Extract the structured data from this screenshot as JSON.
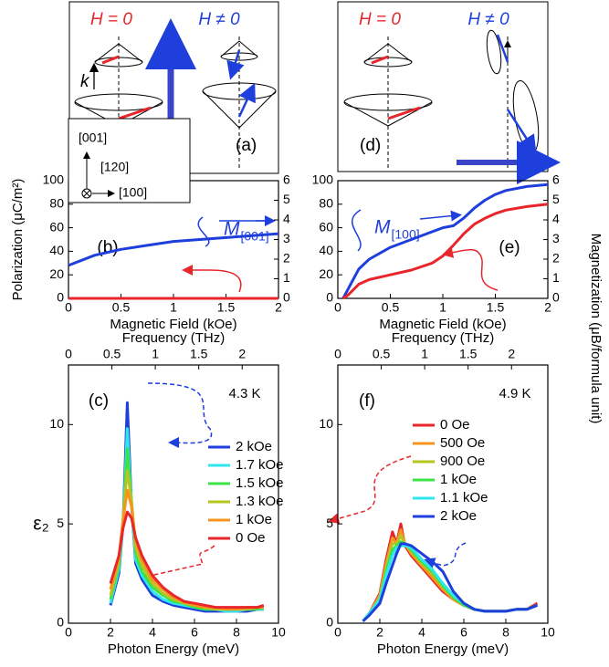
{
  "schematics": {
    "a": {
      "h_zero": "H = 0",
      "h_nonzero": "H ≠ 0",
      "k": "k",
      "label": "(a)"
    },
    "axes": {
      "z": "[001]",
      "y": "[120]",
      "x": "[100]"
    },
    "d": {
      "h_zero": "H = 0",
      "h_nonzero": "H ≠ 0",
      "label": "(d)"
    }
  },
  "chart_data": [
    {
      "type": "line",
      "panel_label": "(b)",
      "curve_label": {
        "text": "M",
        "subscript": "[001]"
      },
      "xlabel": "Magnetic Field (kOe)",
      "ylabel": "Polarization (μC/m²)",
      "x": [
        0,
        0.25,
        0.5,
        0.75,
        1,
        1.25,
        1.5,
        1.75,
        2
      ],
      "xlim": [
        0,
        2
      ],
      "xticks": [
        0,
        0.5,
        1,
        1.5,
        2
      ],
      "ylim": [
        0,
        100
      ],
      "yticks": [
        0,
        20,
        40,
        60,
        80,
        100
      ],
      "y2lim": [
        0,
        6
      ],
      "y2ticks": [
        0,
        1,
        2,
        3,
        4,
        5,
        6
      ],
      "series": [
        {
          "color": "#1f3fdc",
          "axis": "y2",
          "values": [
            1.68,
            2.2,
            2.5,
            2.7,
            2.9,
            3.0,
            3.1,
            3.2,
            3.3
          ]
        },
        {
          "color": "#e8262b",
          "values": [
            0,
            0,
            0,
            0,
            0,
            0,
            0,
            0,
            0
          ]
        }
      ]
    },
    {
      "type": "line",
      "panel_label": "(e)",
      "curve_label": {
        "text": "M",
        "subscript": "[100]"
      },
      "xlabel": "Magnetic Field (kOe)",
      "y2label": "Magnetization (μB/formula unit)",
      "x": [
        0.05,
        0.1,
        0.2,
        0.3,
        0.5,
        0.7,
        0.9,
        1.0,
        1.1,
        1.2,
        1.3,
        1.4,
        1.5,
        1.6,
        1.8,
        2.0
      ],
      "xlim": [
        0,
        2
      ],
      "xticks": [
        0,
        0.5,
        1,
        1.5,
        2
      ],
      "ylim": [
        0,
        100
      ],
      "yticks": [
        0,
        20,
        40,
        60,
        80,
        100
      ],
      "y2lim": [
        0,
        6
      ],
      "y2ticks": [
        0,
        1,
        2,
        3,
        4,
        5,
        6
      ],
      "series": [
        {
          "color": "#1f3fdc",
          "axis": "y2",
          "values": [
            0,
            0.5,
            1.5,
            2.0,
            2.6,
            3.0,
            3.4,
            3.6,
            3.7,
            4.1,
            4.6,
            5.0,
            5.3,
            5.5,
            5.7,
            5.8
          ]
        },
        {
          "color": "#e8262b",
          "values": [
            0,
            3,
            12,
            16,
            20,
            24,
            30,
            36,
            45,
            55,
            63,
            68,
            72,
            75,
            78,
            80
          ]
        }
      ]
    },
    {
      "type": "line",
      "panel_label": "(c)",
      "temperature": "4.3 K",
      "xlabel": "Photon Energy (meV)",
      "x2label": "Frequency (THz)",
      "ylabel": "ε₂",
      "x": [
        2,
        2.4,
        2.6,
        2.8,
        3.0,
        3.2,
        3.5,
        4,
        4.5,
        5,
        5.5,
        6,
        6.5,
        7,
        7.5,
        8,
        8.5,
        9,
        9.3
      ],
      "xlim": [
        0,
        10
      ],
      "xticks": [
        0,
        2,
        4,
        6,
        8,
        10
      ],
      "x2lim": [
        0,
        2.418
      ],
      "x2ticks": [
        0,
        0.5,
        1,
        1.5,
        2
      ],
      "ylim": [
        0,
        13
      ],
      "yticks": [
        0,
        5,
        10
      ],
      "series": [
        {
          "name": "2 kOe",
          "color": "#1f3fdc",
          "values": [
            0.9,
            2.5,
            5,
            11.1,
            6,
            3.0,
            2.2,
            1.4,
            1.1,
            0.9,
            0.8,
            0.7,
            0.6,
            0.6,
            0.6,
            0.6,
            0.6,
            0.7,
            0.7
          ]
        },
        {
          "name": "1.7 kOe",
          "color": "#2ee6f0",
          "values": [
            1.0,
            2.7,
            5,
            9.8,
            6,
            3.2,
            2.4,
            1.6,
            1.2,
            1.0,
            0.9,
            0.8,
            0.7,
            0.7,
            0.6,
            0.6,
            0.7,
            0.7,
            0.7
          ]
        },
        {
          "name": "1.5 kOe",
          "color": "#3be34a",
          "values": [
            1.2,
            2.9,
            5.2,
            8.8,
            6.2,
            3.5,
            2.6,
            1.8,
            1.4,
            1.1,
            1.0,
            0.8,
            0.7,
            0.7,
            0.7,
            0.7,
            0.7,
            0.7,
            0.8
          ]
        },
        {
          "name": "1.3 kOe",
          "color": "#b5c522",
          "values": [
            1.4,
            3.1,
            5.3,
            7.7,
            6.2,
            3.8,
            2.9,
            2.0,
            1.5,
            1.2,
            1.0,
            0.9,
            0.8,
            0.7,
            0.7,
            0.7,
            0.7,
            0.8,
            0.8
          ]
        },
        {
          "name": "1 kOe",
          "color": "#f7941d",
          "values": [
            1.7,
            3.3,
            5.2,
            6.7,
            5.9,
            4.1,
            3.2,
            2.2,
            1.7,
            1.3,
            1.1,
            0.9,
            0.8,
            0.8,
            0.7,
            0.7,
            0.8,
            0.8,
            0.8
          ]
        },
        {
          "name": "0 Oe",
          "color": "#e8262b",
          "values": [
            2.0,
            3.4,
            4.8,
            5.6,
            5.3,
            4.3,
            3.4,
            2.4,
            1.8,
            1.4,
            1.1,
            1.0,
            0.9,
            0.8,
            0.8,
            0.8,
            0.8,
            0.8,
            0.9
          ]
        }
      ]
    },
    {
      "type": "line",
      "panel_label": "(f)",
      "temperature": "4.9 K",
      "xlabel": "Photon Energy (meV)",
      "x2label": "Frequency (THz)",
      "x": [
        1.2,
        1.5,
        2,
        2.3,
        2.6,
        2.8,
        3.0,
        3.2,
        3.5,
        4,
        4.5,
        5,
        5.5,
        6,
        6.5,
        7,
        7.5,
        8,
        8.5,
        9,
        9.5
      ],
      "xlim": [
        0,
        10
      ],
      "xticks": [
        0,
        2,
        4,
        6,
        8,
        10
      ],
      "x2lim": [
        0,
        2.418
      ],
      "x2ticks": [
        0,
        0.5,
        1,
        1.5,
        2
      ],
      "ylim": [
        0,
        13
      ],
      "yticks": [
        0,
        5,
        10
      ],
      "series": [
        {
          "name": "0 Oe",
          "color": "#e8262b",
          "values": [
            0.1,
            0.5,
            1.5,
            3.2,
            4.6,
            4.0,
            5.0,
            3.9,
            3.4,
            2.8,
            2.2,
            1.6,
            1.2,
            0.9,
            0.7,
            0.6,
            0.6,
            0.6,
            0.7,
            0.7,
            1.0
          ]
        },
        {
          "name": "500 Oe",
          "color": "#f7941d",
          "values": [
            0.1,
            0.5,
            1.4,
            3.0,
            4.3,
            4.0,
            4.7,
            4.0,
            3.5,
            2.9,
            2.3,
            1.7,
            1.2,
            0.9,
            0.7,
            0.6,
            0.6,
            0.6,
            0.7,
            0.7,
            0.9
          ]
        },
        {
          "name": "900 Oe",
          "color": "#b5c522",
          "values": [
            0.1,
            0.5,
            1.3,
            2.8,
            4.0,
            4.0,
            4.4,
            4.0,
            3.6,
            3.0,
            2.5,
            1.8,
            1.3,
            0.9,
            0.7,
            0.6,
            0.6,
            0.6,
            0.7,
            0.7,
            0.9
          ]
        },
        {
          "name": "1 kOe",
          "color": "#3be34a",
          "values": [
            0.1,
            0.5,
            1.2,
            2.6,
            3.7,
            3.9,
            4.1,
            4.0,
            3.7,
            3.1,
            2.6,
            1.9,
            1.3,
            0.9,
            0.7,
            0.6,
            0.6,
            0.6,
            0.7,
            0.7,
            0.9
          ]
        },
        {
          "name": "1.1 kOe",
          "color": "#2ee6f0",
          "values": [
            0.1,
            0.5,
            1.2,
            2.4,
            3.4,
            3.8,
            3.9,
            3.9,
            3.8,
            3.2,
            2.7,
            2.0,
            1.4,
            1.0,
            0.7,
            0.6,
            0.6,
            0.6,
            0.7,
            0.7,
            0.9
          ]
        },
        {
          "name": "2 kOe",
          "color": "#1f3fdc",
          "values": [
            0.1,
            0.4,
            1.0,
            2.0,
            2.9,
            3.5,
            4.0,
            4.0,
            3.9,
            3.5,
            3.1,
            2.6,
            1.6,
            1.0,
            0.7,
            0.6,
            0.6,
            0.6,
            0.7,
            0.7,
            0.9
          ]
        }
      ]
    }
  ]
}
